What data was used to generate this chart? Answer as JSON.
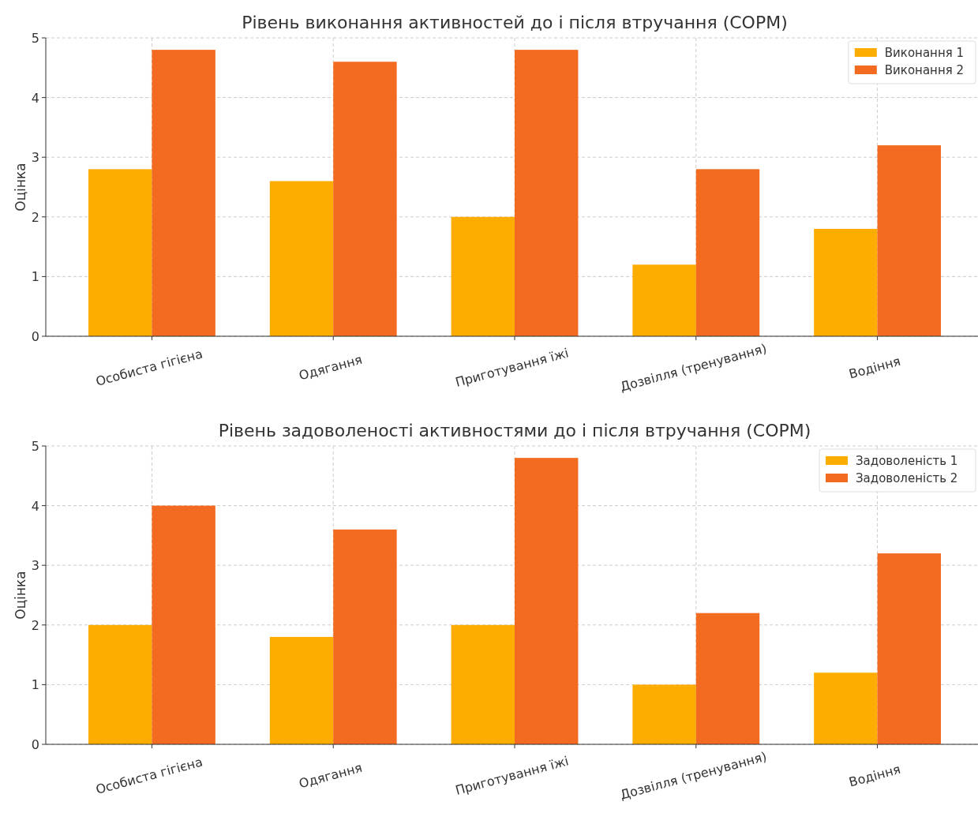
{
  "chart_data": [
    {
      "type": "bar",
      "title": "Рівень виконання активностей до і після втручання (COPM)",
      "ylabel": "Оцінка",
      "categories": [
        "Особиста гігієна",
        "Одягання",
        "Приготування їжі",
        "Дозвілля (тренування)",
        "Водіння"
      ],
      "series": [
        {
          "name": "Виконання 1",
          "color": "#fdac00",
          "values": [
            2.8,
            2.6,
            2.0,
            1.2,
            1.8
          ]
        },
        {
          "name": "Виконання 2",
          "color": "#f26b21",
          "values": [
            4.8,
            4.6,
            4.8,
            2.8,
            3.2
          ]
        }
      ],
      "ylim": [
        0,
        5
      ],
      "yticks": [
        0,
        1,
        2,
        3,
        4,
        5
      ],
      "grid": true,
      "legend": "top right"
    },
    {
      "type": "bar",
      "title": "Рівень задоволеності активностями до і після втручання (COPM)",
      "ylabel": "Оцінка",
      "categories": [
        "Особиста гігієна",
        "Одягання",
        "Приготування їжі",
        "Дозвілля (тренування)",
        "Водіння"
      ],
      "series": [
        {
          "name": "Задоволеність 1",
          "color": "#fdac00",
          "values": [
            2.0,
            1.8,
            2.0,
            1.0,
            1.2
          ]
        },
        {
          "name": "Задоволеність 2",
          "color": "#f26b21",
          "values": [
            4.0,
            3.6,
            4.8,
            2.2,
            3.2
          ]
        }
      ],
      "ylim": [
        0,
        5
      ],
      "yticks": [
        0,
        1,
        2,
        3,
        4,
        5
      ],
      "grid": true,
      "legend": "top right"
    }
  ]
}
